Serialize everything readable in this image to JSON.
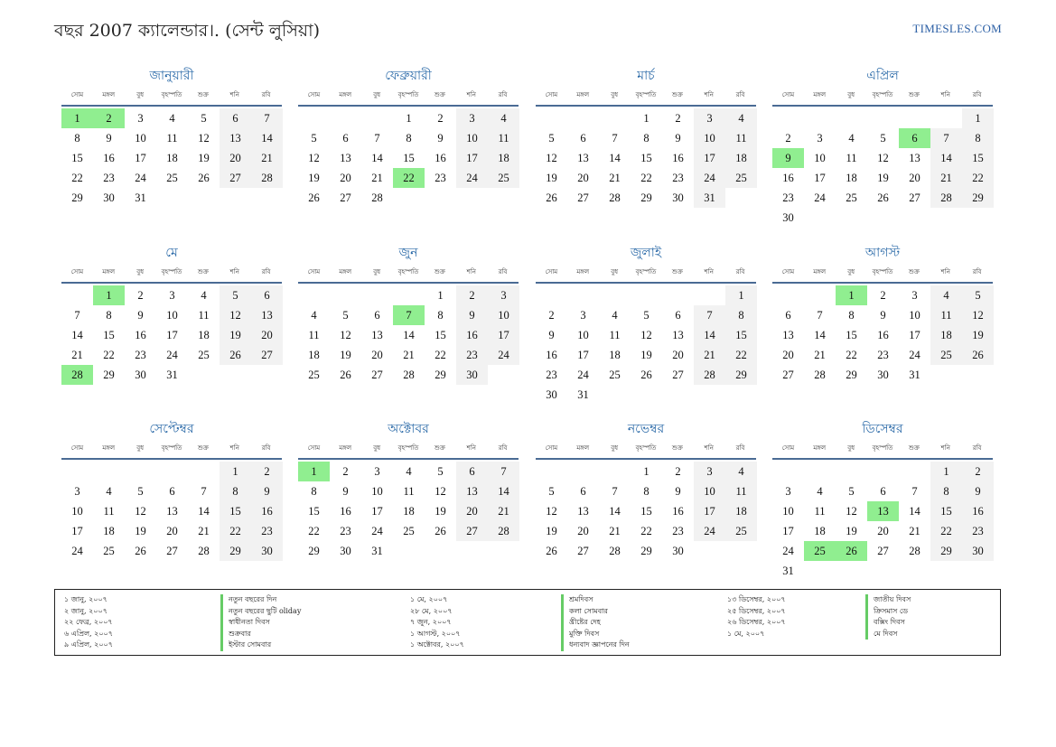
{
  "title": "বছর 2007 ক্যালেন্ডার।. (সেন্ট লুসিয়া)",
  "site": "TIMESLES.COM",
  "weekdays": [
    "সোম",
    "মঙ্গল",
    "বুধ",
    "বৃহস্পতি",
    "শুক্র",
    "শনি",
    "রবি"
  ],
  "colors": {
    "holiday": "#90ee90",
    "weekend": "#f2f2f2",
    "month_name": "#2b6aa8",
    "rule": "#4a6b94"
  },
  "months": [
    {
      "name": "জানুয়ারী",
      "start": 0,
      "days": 31,
      "holidays": [
        1,
        2
      ]
    },
    {
      "name": "ফেব্রুয়ারী",
      "start": 3,
      "days": 28,
      "holidays": [
        22
      ]
    },
    {
      "name": "মার্চ",
      "start": 3,
      "days": 31,
      "holidays": []
    },
    {
      "name": "এপ্রিল",
      "start": 6,
      "days": 30,
      "holidays": [
        6,
        9
      ]
    },
    {
      "name": "মে",
      "start": 1,
      "days": 31,
      "holidays": [
        1,
        28
      ]
    },
    {
      "name": "জুন",
      "start": 4,
      "days": 30,
      "holidays": [
        7
      ]
    },
    {
      "name": "জুলাই",
      "start": 6,
      "days": 31,
      "holidays": []
    },
    {
      "name": "আগস্ট",
      "start": 2,
      "days": 31,
      "holidays": [
        1
      ]
    },
    {
      "name": "সেপ্টেম্বর",
      "start": 5,
      "days": 30,
      "holidays": []
    },
    {
      "name": "অক্টোবর",
      "start": 0,
      "days": 31,
      "holidays": [
        1
      ]
    },
    {
      "name": "নভেম্বর",
      "start": 3,
      "days": 30,
      "holidays": []
    },
    {
      "name": "ডিসেম্বর",
      "start": 5,
      "days": 31,
      "holidays": [
        13,
        25,
        26
      ]
    }
  ],
  "legend": {
    "col1_dates": [
      "১ জানু, ২০০৭",
      "২ জানু, ২০০৭",
      "২২ ফেব্র, ২০০৭",
      "৬ এপ্রিল, ২০০৭",
      "৯ এপ্রিল, ২০০৭"
    ],
    "col1_names": [
      "নতুন বছরের দিন",
      "নতুন বছরের ছুটি oliday",
      "স্বাধীনতা দিবস",
      "শুক্রবার",
      "ইস্টার সোমবার"
    ],
    "col2_dates": [
      "১ মে, ২০০৭",
      "২৮ মে, ২০০৭",
      "৭ জুন, ২০০৭",
      "১ আগস্ট, ২০০৭",
      "১ অক্টোবর, ২০০৭"
    ],
    "col2_names": [
      "শ্রমদিবস",
      "কলা সোমবার",
      "খ্রীষ্টের দেহ",
      "মুক্তি দিবস",
      "ধন্যবাদ জ্ঞাপনের দিন"
    ],
    "col3_dates": [
      "১৩ ডিসেম্বর, ২০০৭",
      "২৫ ডিসেম্বর, ২০০৭",
      "২৬ ডিসেম্বর, ২০০৭",
      "১ মে, ২০০৭"
    ],
    "col3_names": [
      "জাতীয় দিবস",
      "ক্রিসমাস ডে",
      "বক্সিং দিবস",
      "মে দিবস"
    ]
  }
}
